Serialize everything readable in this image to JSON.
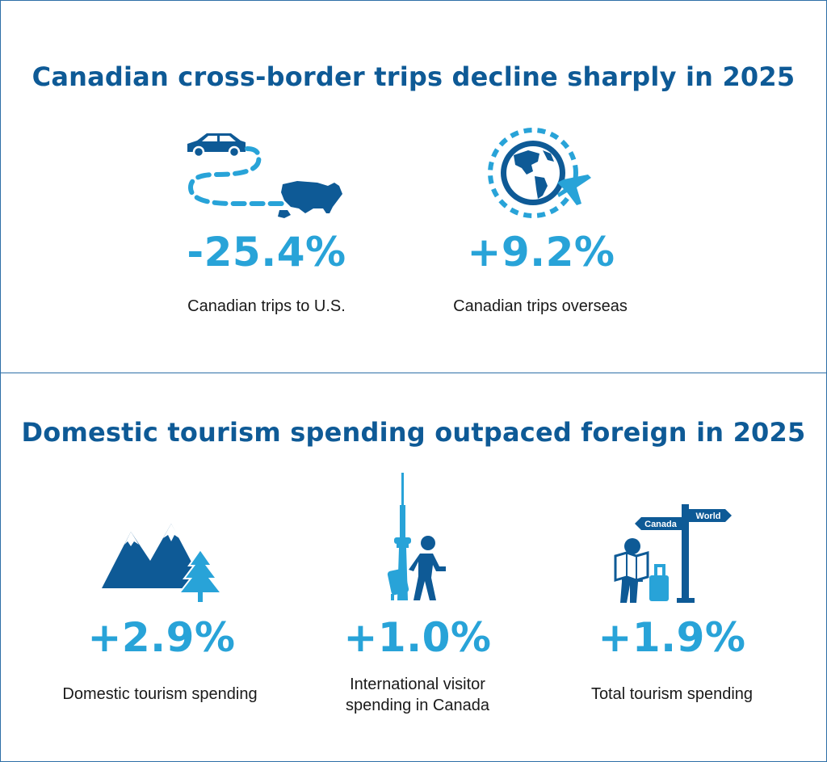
{
  "section_top": {
    "title": "Canadian cross-border trips decline sharply in 2025",
    "stats": [
      {
        "value": "-25.4%",
        "label": "Canadian trips to U.S.",
        "icon": "car-to-us-map-icon"
      },
      {
        "value": "+9.2%",
        "label": "Canadian trips overseas",
        "icon": "globe-plane-icon"
      }
    ]
  },
  "section_bottom": {
    "title": "Domestic tourism spending outpaced foreign in 2025",
    "stats": [
      {
        "value": "+2.9%",
        "label": "Domestic tourism spending",
        "icon": "mountains-tree-icon"
      },
      {
        "value": "+1.0%",
        "label_line1": "International visitor",
        "label_line2": "spending in Canada",
        "icon": "cn-tower-traveller-icon"
      },
      {
        "value": "+1.9%",
        "label": "Total tourism spending",
        "icon": "traveller-signpost-icon"
      }
    ],
    "signpost": {
      "left": "Canada",
      "right": "World"
    }
  },
  "colors": {
    "dark_blue": "#0e5a96",
    "light_blue": "#28a3d8",
    "border": "#2f6fa7"
  }
}
